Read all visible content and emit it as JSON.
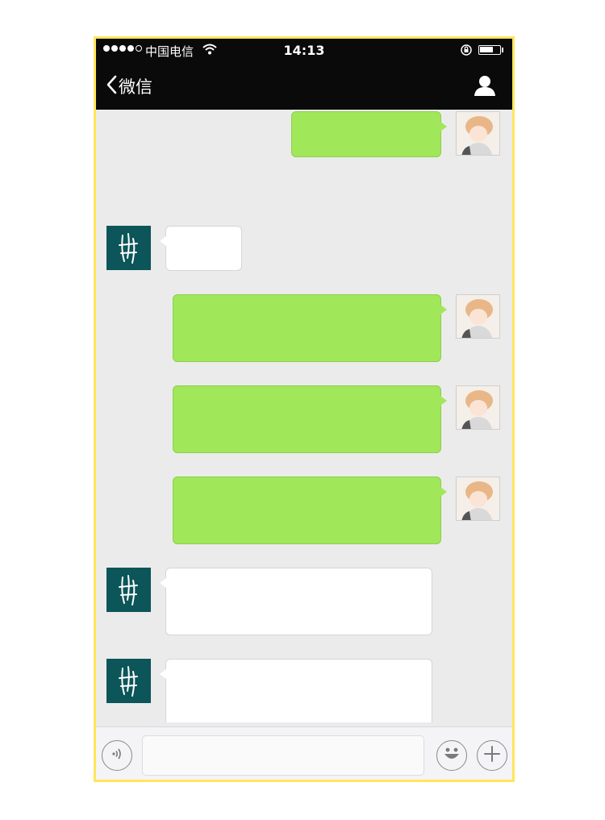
{
  "status_bar": {
    "carrier": "中国电信",
    "time": "14:13",
    "battery_level": 0.7,
    "signal_bars_filled": 4,
    "signal_bars_total": 5
  },
  "nav": {
    "back_label": "微信"
  },
  "messages": [
    {
      "sender": "me",
      "text": ""
    },
    {
      "sender": "them",
      "text": ""
    },
    {
      "sender": "me",
      "text": ""
    },
    {
      "sender": "me",
      "text": ""
    },
    {
      "sender": "me",
      "text": ""
    },
    {
      "sender": "them",
      "text": ""
    },
    {
      "sender": "them",
      "text": ""
    }
  ],
  "input_bar": {
    "value": "",
    "voice_icon": "voice-icon",
    "emoji_icon": "emoji-icon",
    "plus_icon": "plus-icon"
  },
  "colors": {
    "bar_background": "#0a0a0a",
    "chat_background": "#ebebeb",
    "sent_bubble": "#a0e75a",
    "received_bubble": "#ffffff",
    "frame_border": "#ffe65c",
    "contact_avatar": "#0c5559"
  }
}
